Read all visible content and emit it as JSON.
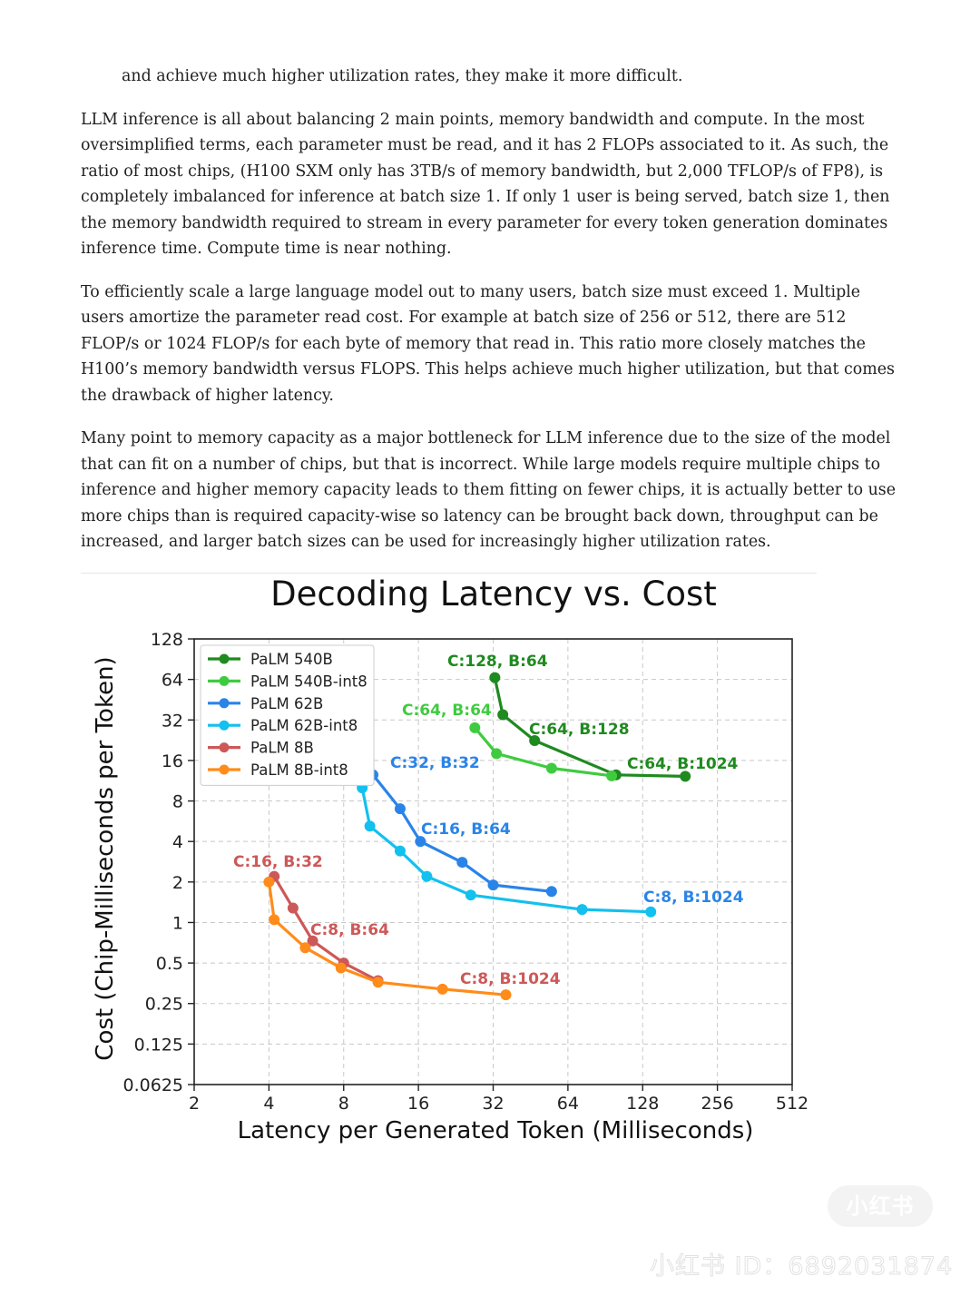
{
  "article": {
    "p0": "and achieve much higher utilization rates, they make it more difficult.",
    "p1": "LLM inference is all about balancing 2 main points, memory bandwidth and compute. In the most oversimplified terms, each parameter must be read, and it has 2 FLOPs associated to it. As such, the ratio of most chips, (H100 SXM only has 3TB/s of memory bandwidth, but 2,000 TFLOP/s of FP8), is completely imbalanced for inference at batch size 1. If only 1 user is being served, batch size 1, then the memory bandwidth required to stream in every parameter for every token generation dominates inference time. Compute time is near nothing.",
    "p2": "To efficiently scale a large language model out to many users, batch size must exceed 1. Multiple users amortize the parameter read cost. For example at batch size of 256 or 512, there are 512 FLOP/s or 1024 FLOP/s for each byte of memory that read in. This ratio more closely matches the H100’s memory bandwidth versus FLOPS. This helps achieve much higher utilization, but that comes the drawback of higher latency.",
    "p3": "Many point to memory capacity as a major bottleneck for LLM inference due to the size of the model that can fit on a number of chips, but that is incorrect. While large models require multiple chips to inference and higher memory capacity leads to them fitting on fewer chips, it is actually better to use more chips than is required capacity-wise so latency can be brought back down, throughput can be increased, and larger batch sizes can be used for increasingly higher utilization rates."
  },
  "watermark": {
    "logo": "小红书",
    "id": "小红书 ID：6892031874"
  },
  "chart_data": {
    "type": "line",
    "title": "Decoding Latency vs. Cost",
    "xlabel": "Latency per Generated Token (Milliseconds)",
    "ylabel": "Cost (Chip-Milliseconds per Token)",
    "x_scale": "log2",
    "y_scale": "log2",
    "xlim": [
      2,
      512
    ],
    "ylim": [
      0.0625,
      128
    ],
    "x_ticks": [
      2,
      4,
      8,
      16,
      32,
      64,
      128,
      256,
      512
    ],
    "x_tick_labels": [
      "2",
      "4",
      "8",
      "16",
      "32",
      "64",
      "128",
      "256",
      "512"
    ],
    "y_ticks": [
      0.0625,
      0.125,
      0.25,
      0.5,
      1,
      2,
      4,
      8,
      16,
      32,
      64,
      128
    ],
    "y_tick_labels": [
      "0.0625",
      "0.125",
      "0.25",
      "0.5",
      "1",
      "2",
      "4",
      "8",
      "16",
      "32",
      "64",
      "128"
    ],
    "grid": true,
    "legend_position": "top-left",
    "series": [
      {
        "name": "PaLM 540B",
        "color": "#1f8a1f",
        "x": [
          32.5,
          35,
          47,
          100,
          190
        ],
        "y": [
          66,
          35,
          22.5,
          12.5,
          12.2
        ]
      },
      {
        "name": "PaLM 540B-int8",
        "color": "#3fcb3f",
        "x": [
          27,
          33,
          55,
          96
        ],
        "y": [
          28,
          18,
          14,
          12.3
        ]
      },
      {
        "name": "PaLM 62B",
        "color": "#2a84e8",
        "x": [
          10.5,
          13.5,
          16.3,
          24,
          32,
          55
        ],
        "y": [
          12.5,
          7,
          4,
          2.8,
          1.9,
          1.7
        ]
      },
      {
        "name": "PaLM 62B-int8",
        "color": "#13c0ee",
        "x": [
          9.5,
          10.2,
          13.5,
          17.3,
          26,
          73,
          138
        ],
        "y": [
          10,
          5.2,
          3.4,
          2.2,
          1.6,
          1.25,
          1.2
        ]
      },
      {
        "name": "PaLM 8B",
        "color": "#cd5858",
        "x": [
          4.2,
          5,
          6,
          8,
          11
        ],
        "y": [
          2.2,
          1.28,
          0.73,
          0.5,
          0.37
        ]
      },
      {
        "name": "PaLM 8B-int8",
        "color": "#ff8c1a",
        "x": [
          4,
          4.2,
          5.6,
          7.8,
          11,
          20,
          36
        ],
        "y": [
          2,
          1.05,
          0.65,
          0.46,
          0.36,
          0.32,
          0.29
        ]
      }
    ],
    "annotations": [
      {
        "text": "C:128, B:64",
        "series": "PaLM 540B",
        "color": "#1f8a1f"
      },
      {
        "text": "C:64, B:128",
        "series": "PaLM 540B",
        "color": "#1f8a1f"
      },
      {
        "text": "C:64, B:1024",
        "series": "PaLM 540B",
        "color": "#1f8a1f"
      },
      {
        "text": "C:64, B:64",
        "series": "PaLM 540B-int8",
        "color": "#3fcb3f"
      },
      {
        "text": "C:32, B:32",
        "series": "PaLM 62B",
        "color": "#2a84e8"
      },
      {
        "text": "C:16, B:64",
        "series": "PaLM 62B",
        "color": "#2a84e8"
      },
      {
        "text": "C:8, B:1024",
        "series": "PaLM 62B",
        "color": "#2a84e8"
      },
      {
        "text": "C:16, B:32",
        "series": "PaLM 8B",
        "color": "#cd5858"
      },
      {
        "text": "C:8, B:64",
        "series": "PaLM 8B",
        "color": "#cd5858"
      },
      {
        "text": "C:8, B:1024",
        "series": "PaLM 8B",
        "color": "#cd5858"
      }
    ]
  }
}
